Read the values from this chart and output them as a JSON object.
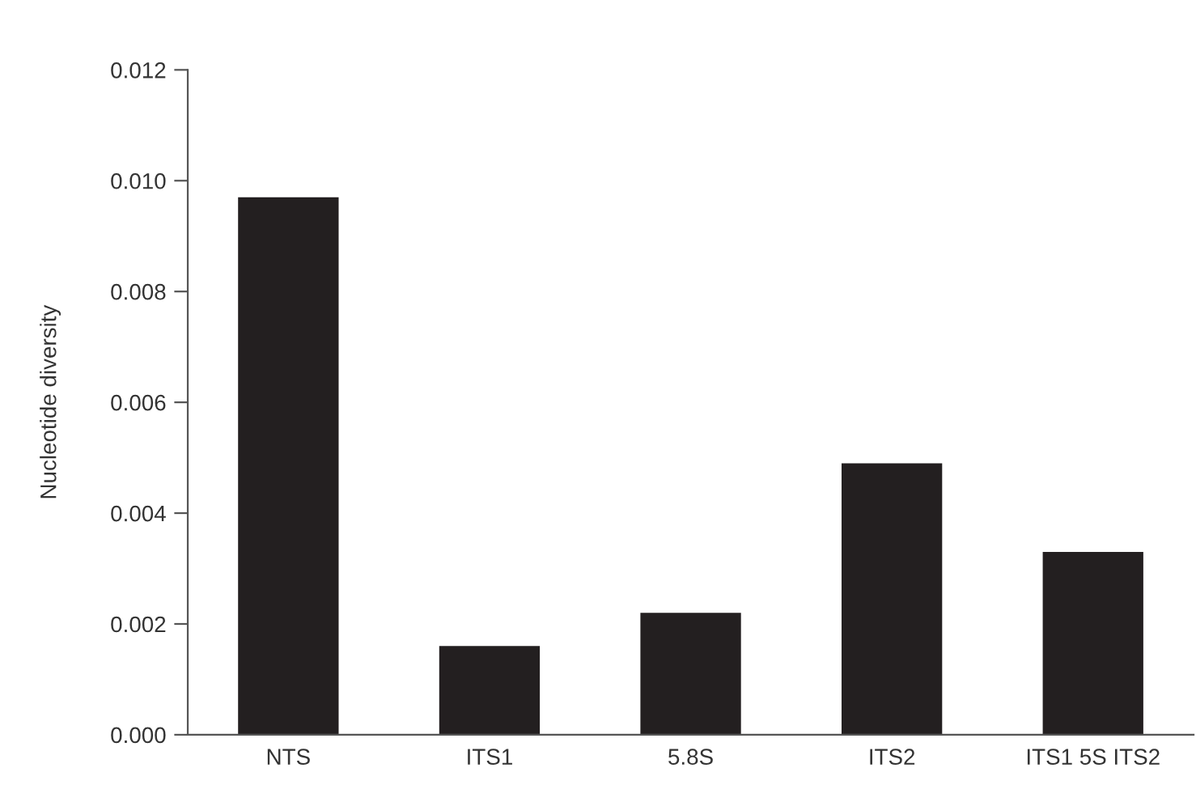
{
  "chart_data": {
    "type": "bar",
    "ylabel": "Nucleotide diversity",
    "categories": [
      "NTS",
      "ITS1",
      "5.8S",
      "ITS2",
      "ITS1 5S ITS2"
    ],
    "values": [
      0.0097,
      0.0016,
      0.0022,
      0.0049,
      0.0033
    ],
    "color": "#231f20",
    "ylim": [
      0,
      0.012
    ],
    "yticks": [
      {
        "value": 0,
        "label": "0.000"
      },
      {
        "value": 0.002,
        "label": "0.002"
      },
      {
        "value": 0.004,
        "label": "0.004"
      },
      {
        "value": 0.006,
        "label": "0.006"
      },
      {
        "value": 0.008,
        "label": "0.008"
      },
      {
        "value": 0.01,
        "label": "0.010"
      },
      {
        "value": 0.012,
        "label": "0.012"
      }
    ],
    "grid": false
  }
}
